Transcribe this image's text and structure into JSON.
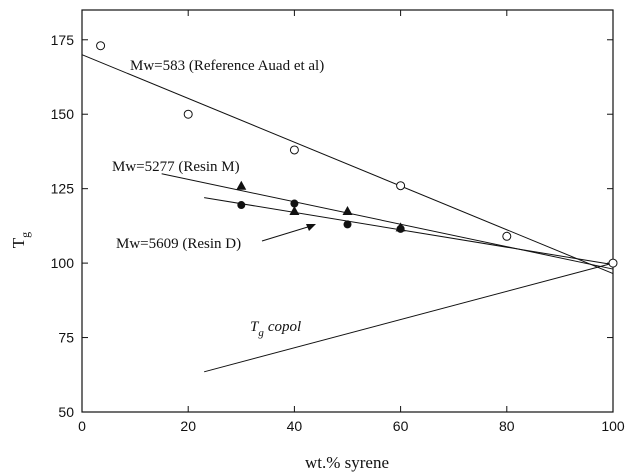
{
  "chart_data": {
    "type": "scatter",
    "xlabel": "wt.% syrene",
    "ylabel": "T",
    "ylabel_sub": "g",
    "xlim": [
      0,
      100
    ],
    "ylim": [
      50,
      185
    ],
    "xticks": [
      0,
      20,
      40,
      60,
      80,
      100
    ],
    "yticks": [
      50,
      75,
      100,
      125,
      150,
      175
    ],
    "grid": false,
    "series": [
      {
        "name": "Mw=583 (Reference Auad et al)",
        "marker": "open-circle",
        "points": [
          [
            3.5,
            173
          ],
          [
            20,
            150
          ],
          [
            40,
            138
          ],
          [
            60,
            126
          ],
          [
            80,
            109
          ],
          [
            100,
            100
          ]
        ]
      },
      {
        "name": "Mw=5277 (Resin M)",
        "marker": "filled-triangle",
        "points": [
          [
            30,
            126
          ],
          [
            40,
            117.5
          ],
          [
            50,
            117.5
          ],
          [
            60,
            112
          ]
        ]
      },
      {
        "name": "Mw=5609 (Resin D)",
        "marker": "filled-circle",
        "points": [
          [
            30,
            119.5
          ],
          [
            40,
            120
          ],
          [
            50,
            113
          ],
          [
            60,
            111.5
          ]
        ]
      }
    ],
    "lines": [
      {
        "name": "fit-583",
        "from": [
          0,
          170
        ],
        "to": [
          100,
          96.5
        ]
      },
      {
        "name": "fit-5277",
        "from": [
          15,
          130
        ],
        "to": [
          100,
          98
        ]
      },
      {
        "name": "fit-5609",
        "from": [
          23,
          122
        ],
        "to": [
          100,
          99.5
        ]
      },
      {
        "name": "tg-copol",
        "from": [
          23,
          63.5
        ],
        "to": [
          100,
          100
        ]
      }
    ],
    "annotations": {
      "mw583": "Mw=583 (Reference Auad et al)",
      "mw5277": "Mw=5277 (Resin M)",
      "mw5609": "Mw=5609 (Resin D)",
      "tg_copol_main": "T",
      "tg_copol_sub": "g",
      "tg_copol_rest": "copol"
    }
  }
}
